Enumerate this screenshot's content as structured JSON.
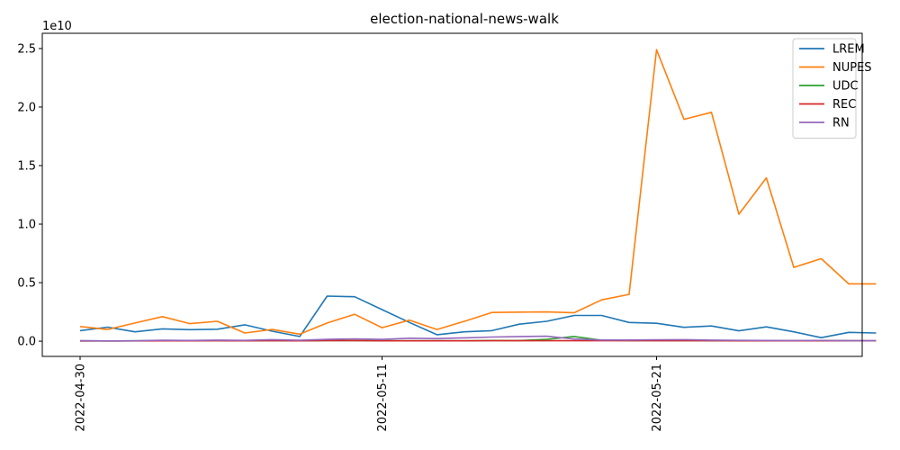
{
  "chart_data": {
    "type": "line",
    "title": "election-national-news-walk",
    "xlabel": "",
    "ylabel": "",
    "y_scale_label": "1e10",
    "x": [
      "2022-04-30",
      "2022-05-01",
      "2022-05-02",
      "2022-05-03",
      "2022-05-04",
      "2022-05-05",
      "2022-05-06",
      "2022-05-07",
      "2022-05-08",
      "2022-05-09",
      "2022-05-10",
      "2022-05-11",
      "2022-05-12",
      "2022-05-13",
      "2022-05-14",
      "2022-05-15",
      "2022-05-16",
      "2022-05-17",
      "2022-05-18",
      "2022-05-19",
      "2022-05-20",
      "2022-05-21",
      "2022-05-22",
      "2022-05-23",
      "2022-05-24",
      "2022-05-25",
      "2022-05-26",
      "2022-05-27",
      "2022-05-28",
      "2022-05-29"
    ],
    "x_ticks": [
      "2022-04-30",
      "2022-05-11",
      "2022-05-21"
    ],
    "y_ticks": [
      0.0,
      0.5,
      1.0,
      1.5,
      2.0,
      2.5
    ],
    "y_tick_labels": [
      "0.0",
      "0.5",
      "1.0",
      "1.5",
      "2.0",
      "2.5"
    ],
    "ylim": [
      -0.13,
      2.63
    ],
    "grid": false,
    "legend_position": "top-right",
    "series": [
      {
        "name": "LREM",
        "color": "#1f77b4",
        "values": [
          0.09,
          0.12,
          0.08,
          0.105,
          0.098,
          0.102,
          0.14,
          0.085,
          0.04,
          0.385,
          0.38,
          0.27,
          0.16,
          0.055,
          0.08,
          0.09,
          0.145,
          0.17,
          0.22,
          0.22,
          0.16,
          0.153,
          0.118,
          0.13,
          0.088,
          0.122,
          0.08,
          0.03,
          0.075,
          0.07
        ]
      },
      {
        "name": "NUPES",
        "color": "#ff7f0e",
        "values": [
          0.125,
          0.1,
          0.155,
          0.21,
          0.15,
          0.17,
          0.07,
          0.1,
          0.06,
          0.155,
          0.23,
          0.115,
          0.18,
          0.1,
          0.17,
          0.245,
          0.248,
          0.25,
          0.243,
          0.353,
          0.4,
          2.49,
          1.895,
          1.955,
          1.085,
          1.395,
          0.63,
          0.705,
          0.49,
          0.49
        ]
      },
      {
        "name": "UDC",
        "color": "#2ca02c",
        "values": [
          0.002,
          0.002,
          0.003,
          0.005,
          0.004,
          0.005,
          0.004,
          0.004,
          0.003,
          0.005,
          0.005,
          0.004,
          0.003,
          0.004,
          0.003,
          0.006,
          0.005,
          0.015,
          0.04,
          0.008,
          0.006,
          0.005,
          0.005,
          0.004,
          0.004,
          0.004,
          0.003,
          0.004,
          0.004,
          0.003
        ]
      },
      {
        "name": "REC",
        "color": "#d62728",
        "values": [
          0.002,
          0.002,
          0.002,
          0.003,
          0.003,
          0.004,
          0.003,
          0.004,
          0.003,
          0.005,
          0.005,
          0.003,
          0.003,
          0.003,
          0.003,
          0.004,
          0.004,
          0.004,
          0.004,
          0.004,
          0.004,
          0.004,
          0.004,
          0.004,
          0.003,
          0.003,
          0.003,
          0.003,
          0.003,
          0.003
        ]
      },
      {
        "name": "RN",
        "color": "#9467bd",
        "values": [
          0.005,
          0.002,
          0.003,
          0.008,
          0.006,
          0.009,
          0.007,
          0.013,
          0.008,
          0.015,
          0.02,
          0.015,
          0.025,
          0.022,
          0.028,
          0.035,
          0.04,
          0.042,
          0.018,
          0.01,
          0.01,
          0.012,
          0.013,
          0.009,
          0.007,
          0.006,
          0.005,
          0.006,
          0.004,
          0.004
        ]
      }
    ]
  }
}
